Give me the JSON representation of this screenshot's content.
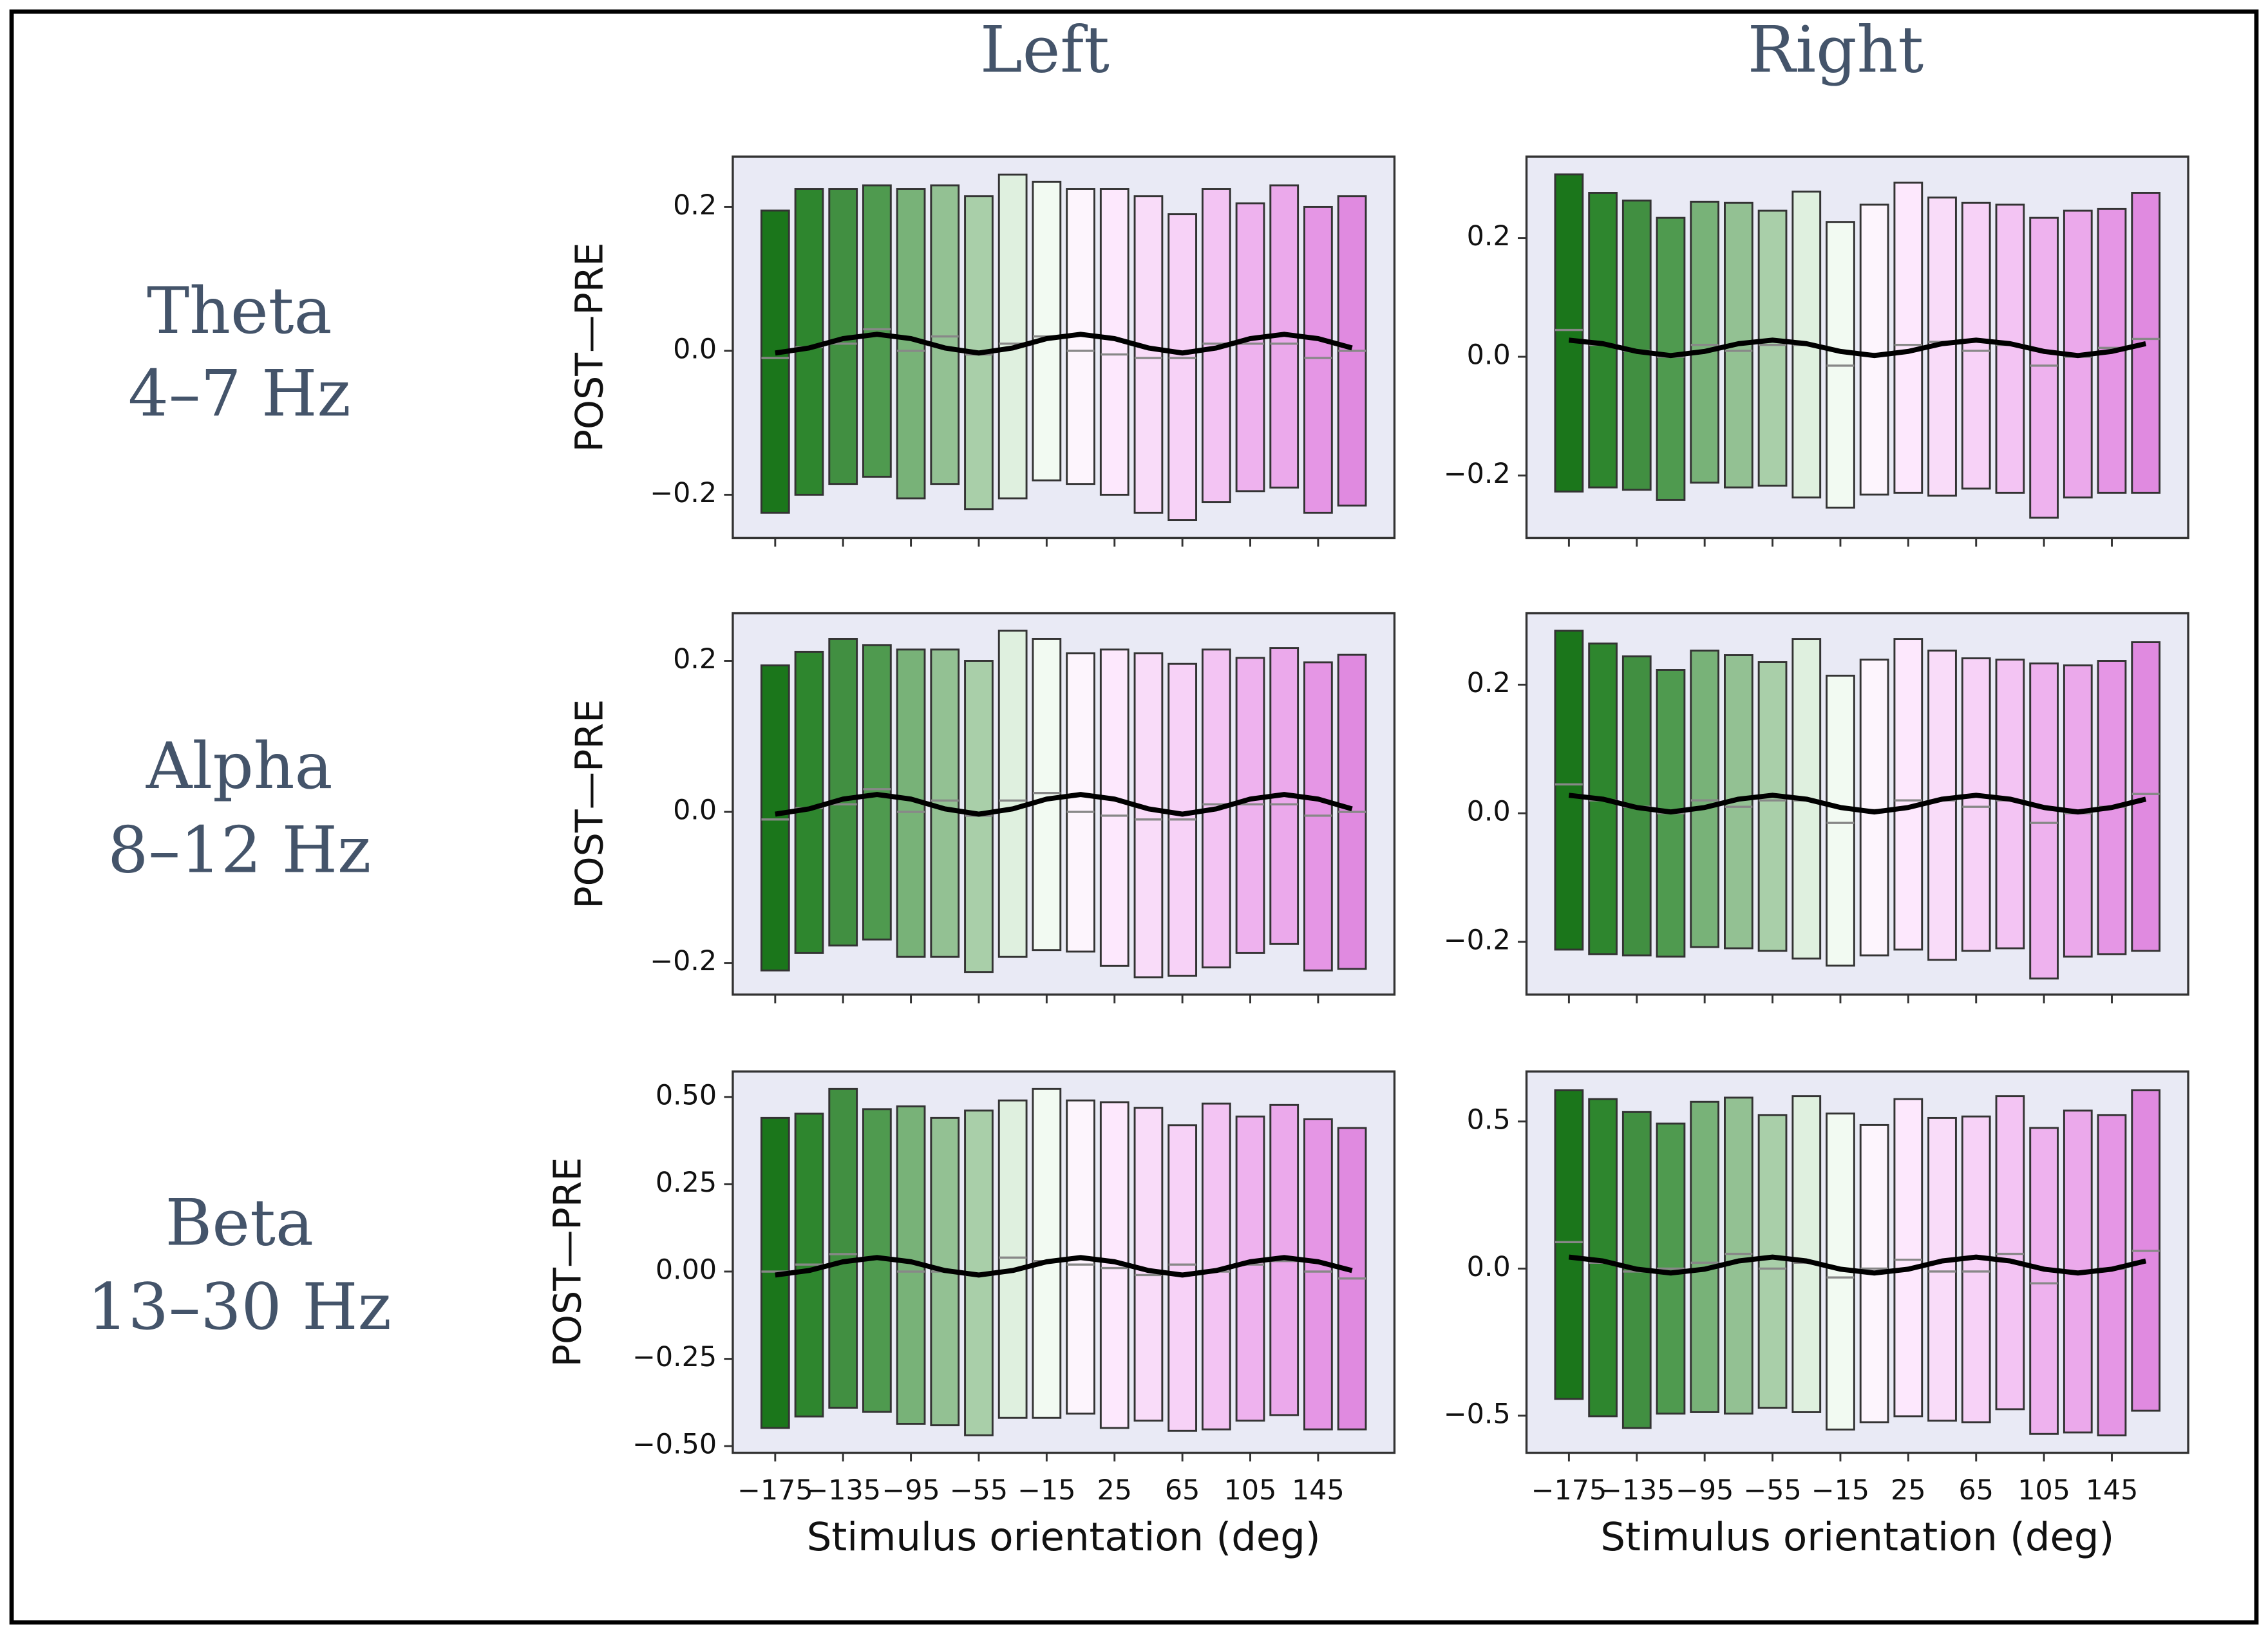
{
  "column_titles": [
    "Left",
    "Right"
  ],
  "row_labels": [
    {
      "name": "Theta",
      "band": "4–7 Hz"
    },
    {
      "name": "Alpha",
      "band": "8–12 Hz"
    },
    {
      "name": "Beta",
      "band": "13–30 Hz"
    }
  ],
  "bar_colors": [
    "#1b761b",
    "#2e862e",
    "#418f41",
    "#4f9a4f",
    "#78b278",
    "#93c193",
    "#a9cfa9",
    "#dff0df",
    "#f2faf2",
    "#fdf5fd",
    "#fde8fd",
    "#f9dcf9",
    "#f7d2f7",
    "#f3c4f3",
    "#eeb2ee",
    "#eba9eb",
    "#e596e5",
    "#e08ae0"
  ],
  "chart_data": [
    {
      "type": "range_bar",
      "ylabel": "POST—PRE",
      "x": [
        -175,
        -155,
        -135,
        -115,
        -95,
        -75,
        -55,
        -35,
        -15,
        5,
        25,
        45,
        65,
        85,
        105,
        125,
        145,
        165
      ],
      "xlim": [
        -200,
        190
      ],
      "xticks": [
        -175,
        -135,
        -95,
        -55,
        -15,
        25,
        65,
        105,
        145
      ],
      "ylim": [
        -0.26,
        0.27
      ],
      "yticks": [
        {
          "value": -0.2,
          "label": "−0.2"
        },
        {
          "value": 0,
          "label": "0.0"
        },
        0.2
      ],
      "high": [
        0.195,
        0.225,
        0.225,
        0.23,
        0.225,
        0.23,
        0.215,
        0.245,
        0.235,
        0.225,
        0.225,
        0.215,
        0.19,
        0.225,
        0.205,
        0.23,
        0.2,
        0.215
      ],
      "low": [
        -0.225,
        -0.2,
        -0.185,
        -0.175,
        -0.205,
        -0.185,
        -0.22,
        -0.205,
        -0.18,
        -0.185,
        -0.2,
        -0.225,
        -0.235,
        -0.21,
        -0.195,
        -0.19,
        -0.225,
        -0.215
      ],
      "median": [
        -0.01,
        0.005,
        0.01,
        0.03,
        0.0,
        0.02,
        -0.005,
        0.01,
        0.02,
        0.0,
        -0.005,
        -0.01,
        -0.01,
        0.01,
        0.01,
        0.01,
        -0.01,
        0.0
      ],
      "curve": [
        -0.003,
        0.004,
        0.017,
        0.023,
        0.017,
        0.004,
        -0.003,
        0.004,
        0.017,
        0.023,
        0.017,
        0.004,
        -0.003,
        0.004,
        0.017,
        0.023,
        0.017,
        0.004
      ]
    },
    {
      "type": "range_bar",
      "x": [
        -175,
        -155,
        -135,
        -115,
        -95,
        -75,
        -55,
        -35,
        -15,
        5,
        25,
        45,
        65,
        85,
        105,
        125,
        145,
        165
      ],
      "xlim": [
        -200,
        190
      ],
      "xticks": [
        -175,
        -135,
        -95,
        -55,
        -15,
        25,
        65,
        105,
        145
      ],
      "ylim": [
        -0.305,
        0.337
      ],
      "yticks": [
        {
          "value": -0.2,
          "label": "−0.2"
        },
        {
          "value": 0,
          "label": "0.0"
        },
        0.2
      ],
      "high": [
        0.307,
        0.276,
        0.263,
        0.234,
        0.261,
        0.259,
        0.246,
        0.278,
        0.227,
        0.256,
        0.293,
        0.268,
        0.259,
        0.256,
        0.234,
        0.246,
        0.249,
        0.276
      ],
      "low": [
        -0.227,
        -0.22,
        -0.224,
        -0.241,
        -0.212,
        -0.22,
        -0.217,
        -0.237,
        -0.254,
        -0.232,
        -0.229,
        -0.234,
        -0.222,
        -0.229,
        -0.271,
        -0.237,
        -0.229,
        -0.229
      ],
      "median": [
        0.045,
        0.02,
        0.01,
        0.0,
        0.02,
        0.01,
        0.02,
        0.02,
        -0.015,
        0.005,
        0.02,
        0.025,
        0.01,
        0.02,
        -0.015,
        0.0,
        0.015,
        0.03
      ],
      "curve": [
        0.028,
        0.022,
        0.009,
        0.002,
        0.009,
        0.022,
        0.028,
        0.022,
        0.009,
        0.002,
        0.009,
        0.022,
        0.028,
        0.022,
        0.009,
        0.002,
        0.009,
        0.022
      ]
    },
    {
      "type": "range_bar",
      "ylabel": "POST—PRE",
      "x": [
        -175,
        -155,
        -135,
        -115,
        -95,
        -75,
        -55,
        -35,
        -15,
        5,
        25,
        45,
        65,
        85,
        105,
        125,
        145,
        165
      ],
      "xlim": [
        -200,
        190
      ],
      "xticks": [
        -175,
        -135,
        -95,
        -55,
        -15,
        25,
        65,
        105,
        145
      ],
      "ylim": [
        -0.242,
        0.263
      ],
      "yticks": [
        {
          "value": -0.2,
          "label": "−0.2"
        },
        {
          "value": 0,
          "label": "0.0"
        },
        0.2
      ],
      "high": [
        0.194,
        0.212,
        0.229,
        0.221,
        0.215,
        0.215,
        0.2,
        0.24,
        0.229,
        0.21,
        0.215,
        0.21,
        0.196,
        0.215,
        0.204,
        0.217,
        0.198,
        0.208
      ],
      "low": [
        -0.21,
        -0.187,
        -0.177,
        -0.169,
        -0.192,
        -0.192,
        -0.212,
        -0.192,
        -0.183,
        -0.185,
        -0.204,
        -0.219,
        -0.217,
        -0.206,
        -0.187,
        -0.175,
        -0.21,
        -0.208
      ],
      "median": [
        -0.01,
        0.005,
        0.01,
        0.03,
        0.0,
        0.015,
        -0.005,
        0.015,
        0.025,
        0.0,
        -0.005,
        -0.01,
        -0.01,
        0.01,
        0.01,
        0.01,
        -0.005,
        0.0
      ],
      "curve": [
        -0.003,
        0.004,
        0.017,
        0.023,
        0.017,
        0.004,
        -0.003,
        0.004,
        0.017,
        0.023,
        0.017,
        0.004,
        -0.003,
        0.004,
        0.017,
        0.023,
        0.017,
        0.004
      ]
    },
    {
      "type": "range_bar",
      "x": [
        -175,
        -155,
        -135,
        -115,
        -95,
        -75,
        -55,
        -35,
        -15,
        5,
        25,
        45,
        65,
        85,
        105,
        125,
        145,
        165
      ],
      "xlim": [
        -200,
        190
      ],
      "xticks": [
        -175,
        -135,
        -95,
        -55,
        -15,
        25,
        65,
        105,
        145
      ],
      "ylim": [
        -0.282,
        0.311
      ],
      "yticks": [
        {
          "value": -0.2,
          "label": "−0.2"
        },
        {
          "value": 0,
          "label": "0.0"
        },
        0.2
      ],
      "high": [
        0.284,
        0.264,
        0.244,
        0.223,
        0.253,
        0.246,
        0.235,
        0.271,
        0.214,
        0.239,
        0.271,
        0.253,
        0.241,
        0.239,
        0.233,
        0.23,
        0.237,
        0.266
      ],
      "low": [
        -0.212,
        -0.219,
        -0.221,
        -0.223,
        -0.208,
        -0.21,
        -0.214,
        -0.226,
        -0.237,
        -0.221,
        -0.212,
        -0.228,
        -0.214,
        -0.21,
        -0.257,
        -0.223,
        -0.219,
        -0.214
      ],
      "median": [
        0.045,
        0.02,
        0.01,
        0.0,
        0.02,
        0.01,
        0.02,
        0.02,
        -0.015,
        0.005,
        0.02,
        0.02,
        0.01,
        0.02,
        -0.015,
        0.0,
        0.01,
        0.03
      ],
      "curve": [
        0.028,
        0.022,
        0.009,
        0.002,
        0.009,
        0.022,
        0.028,
        0.022,
        0.009,
        0.002,
        0.009,
        0.022,
        0.028,
        0.022,
        0.009,
        0.002,
        0.009,
        0.022
      ]
    },
    {
      "type": "range_bar",
      "ylabel": "POST—PRE",
      "xlabel": "Stimulus orientation (deg)",
      "x": [
        -175,
        -155,
        -135,
        -115,
        -95,
        -75,
        -55,
        -35,
        -15,
        5,
        25,
        45,
        65,
        85,
        105,
        125,
        145,
        165
      ],
      "xlim": [
        -200,
        190
      ],
      "xticks": [
        {
          "value": -175,
          "label": "−175"
        },
        {
          "value": -135,
          "label": "−135"
        },
        {
          "value": -95,
          "label": "−95"
        },
        {
          "value": -55,
          "label": "−55"
        },
        {
          "value": -15,
          "label": "−15"
        },
        25,
        65,
        105,
        145
      ],
      "ylim": [
        -0.519,
        0.573
      ],
      "yticks": [
        {
          "value": -0.5,
          "label": "−0.50"
        },
        {
          "value": -0.25,
          "label": "−0.25"
        },
        {
          "value": 0,
          "label": "0.00"
        },
        0.25,
        {
          "value": 0.5,
          "label": "0.50"
        }
      ],
      "high": [
        0.44,
        0.452,
        0.523,
        0.465,
        0.473,
        0.44,
        0.461,
        0.49,
        0.523,
        0.49,
        0.485,
        0.469,
        0.419,
        0.481,
        0.444,
        0.477,
        0.436,
        0.411
      ],
      "low": [
        -0.448,
        -0.415,
        -0.39,
        -0.402,
        -0.436,
        -0.44,
        -0.469,
        -0.419,
        -0.419,
        -0.407,
        -0.448,
        -0.427,
        -0.456,
        -0.452,
        -0.427,
        -0.411,
        -0.452,
        -0.452
      ],
      "median": [
        0.0,
        0.02,
        0.05,
        0.04,
        0.0,
        0.0,
        -0.01,
        0.04,
        0.03,
        0.02,
        0.01,
        -0.01,
        0.02,
        0.0,
        0.02,
        0.03,
        0.0,
        -0.02
      ],
      "curve": [
        -0.01,
        0.003,
        0.028,
        0.04,
        0.028,
        0.003,
        -0.01,
        0.003,
        0.028,
        0.04,
        0.028,
        0.003,
        -0.01,
        0.003,
        0.028,
        0.04,
        0.028,
        0.003
      ]
    },
    {
      "type": "range_bar",
      "xlabel": "Stimulus orientation (deg)",
      "x": [
        -175,
        -155,
        -135,
        -115,
        -95,
        -75,
        -55,
        -35,
        -15,
        5,
        25,
        45,
        65,
        85,
        105,
        125,
        145,
        165
      ],
      "xlim": [
        -200,
        190
      ],
      "xticks": [
        {
          "value": -175,
          "label": "−175"
        },
        {
          "value": -135,
          "label": "−135"
        },
        {
          "value": -95,
          "label": "−95"
        },
        {
          "value": -55,
          "label": "−55"
        },
        {
          "value": -15,
          "label": "−15"
        },
        25,
        65,
        105,
        145
      ],
      "ylim": [
        -0.626,
        0.67
      ],
      "yticks": [
        {
          "value": -0.5,
          "label": "−0.5"
        },
        {
          "value": 0,
          "label": "0.0"
        },
        0.5
      ],
      "high": [
        0.606,
        0.576,
        0.532,
        0.493,
        0.567,
        0.581,
        0.522,
        0.586,
        0.527,
        0.488,
        0.576,
        0.512,
        0.517,
        0.586,
        0.478,
        0.537,
        0.522,
        0.606
      ],
      "low": [
        -0.443,
        -0.502,
        -0.542,
        -0.493,
        -0.488,
        -0.493,
        -0.473,
        -0.488,
        -0.547,
        -0.522,
        -0.502,
        -0.517,
        -0.522,
        -0.478,
        -0.562,
        -0.557,
        -0.567,
        -0.483
      ],
      "median": [
        0.09,
        0.02,
        -0.01,
        0.0,
        0.02,
        0.05,
        0.0,
        0.02,
        -0.03,
        0.0,
        0.03,
        -0.01,
        -0.01,
        0.05,
        -0.05,
        -0.01,
        0.0,
        0.06
      ],
      "curve": [
        0.039,
        0.026,
        -0.002,
        -0.015,
        -0.002,
        0.026,
        0.039,
        0.026,
        -0.002,
        -0.015,
        -0.002,
        0.026,
        0.039,
        0.026,
        -0.002,
        -0.015,
        -0.002,
        0.026
      ]
    }
  ]
}
